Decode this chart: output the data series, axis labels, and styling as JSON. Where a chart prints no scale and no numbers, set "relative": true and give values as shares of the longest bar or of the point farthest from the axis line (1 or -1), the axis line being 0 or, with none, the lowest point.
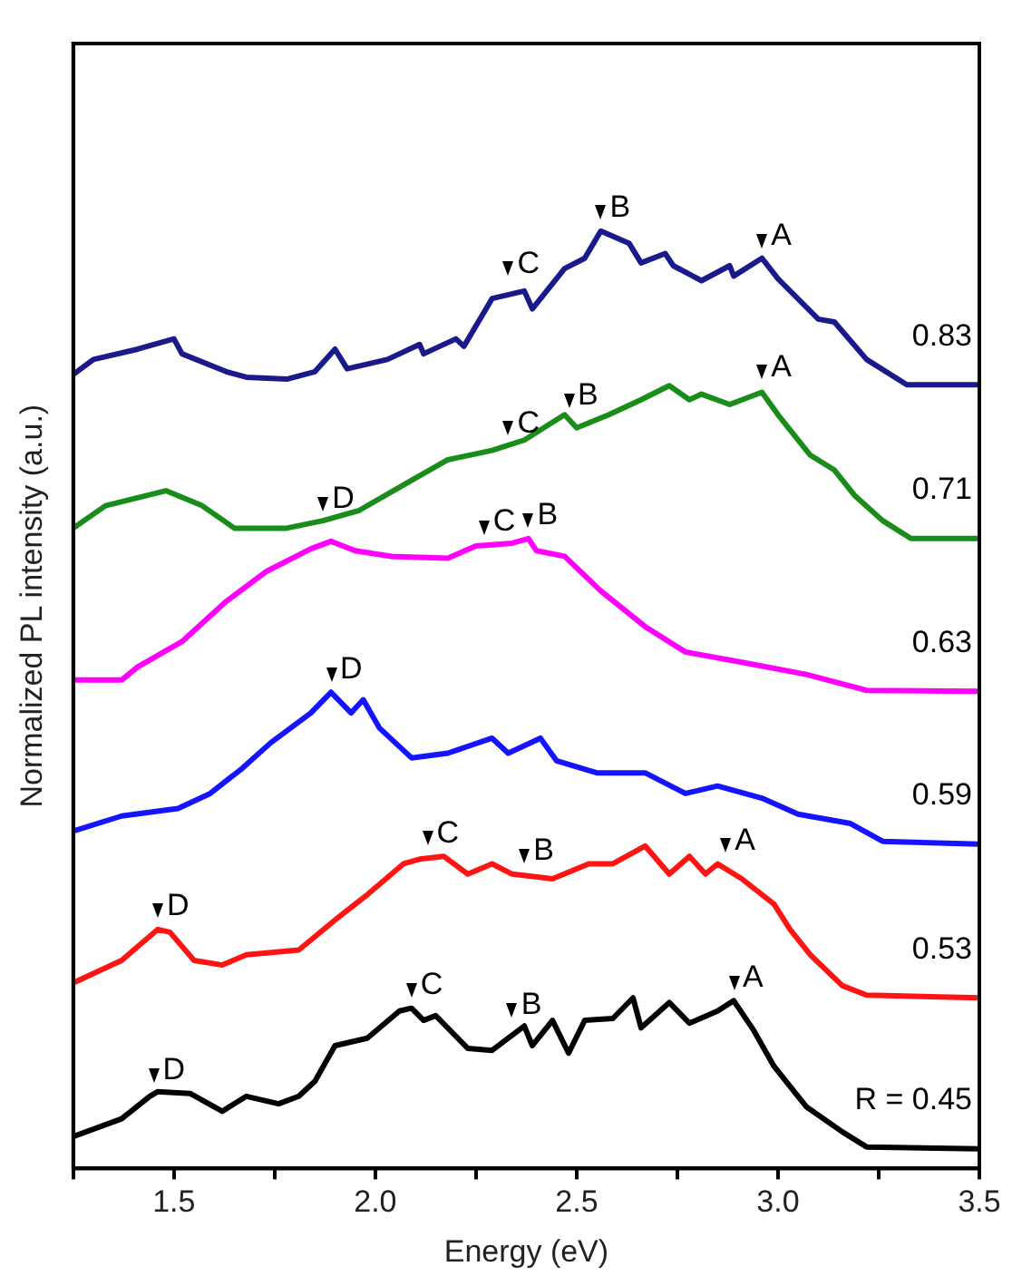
{
  "chart_data": {
    "type": "line",
    "relative": true,
    "xlabel": "Energy (eV)",
    "ylabel": "Normalized PL intensity (a.u.)",
    "xlim": [
      1.25,
      3.5
    ],
    "xticks": [
      {
        "value": 1.25,
        "label": null
      },
      1.5,
      {
        "value": 1.75,
        "label": null
      },
      {
        "value": 2,
        "label": "2.0"
      },
      {
        "value": 2.25,
        "label": null
      },
      2.5,
      {
        "value": 2.75,
        "label": null
      },
      {
        "value": 3,
        "label": "3.0"
      },
      {
        "value": 3.25,
        "label": null
      },
      3.5
    ],
    "grid": false,
    "legend": false,
    "marker": "none",
    "line_style": "solid",
    "series": [
      {
        "name": "0.83",
        "color": "#1a1a8c",
        "x": [
          1.25,
          1.3,
          1.41,
          1.5,
          1.52,
          1.63,
          1.68,
          1.78,
          1.85,
          1.9,
          1.93,
          2.03,
          2.11,
          2.12,
          2.2,
          2.22,
          2.29,
          2.37,
          2.39,
          2.47,
          2.52,
          2.56,
          2.63,
          2.66,
          2.72,
          2.74,
          2.81,
          2.88,
          2.89,
          2.96,
          3.0,
          3.1,
          3.14,
          3.22,
          3.32,
          3.5
        ],
        "values": [
          0.847,
          0.863,
          0.874,
          0.885,
          0.869,
          0.85,
          0.844,
          0.842,
          0.85,
          0.874,
          0.853,
          0.863,
          0.879,
          0.869,
          0.885,
          0.877,
          0.928,
          0.936,
          0.917,
          0.96,
          0.971,
          1.0,
          0.987,
          0.966,
          0.976,
          0.963,
          0.947,
          0.963,
          0.952,
          0.971,
          0.949,
          0.906,
          0.903,
          0.863,
          0.836,
          0.836
        ]
      },
      {
        "name": "0.71",
        "color": "#1a8c1a",
        "x": [
          1.25,
          1.33,
          1.48,
          1.57,
          1.65,
          1.78,
          1.87,
          1.96,
          2.09,
          2.18,
          2.29,
          2.37,
          2.47,
          2.5,
          2.58,
          2.66,
          2.73,
          2.78,
          2.81,
          2.88,
          2.96,
          3.0,
          3.08,
          3.14,
          3.19,
          3.26,
          3.33,
          3.5
        ],
        "values": [
          0.683,
          0.707,
          0.723,
          0.707,
          0.683,
          0.683,
          0.691,
          0.702,
          0.734,
          0.756,
          0.766,
          0.777,
          0.804,
          0.79,
          0.804,
          0.82,
          0.835,
          0.82,
          0.826,
          0.815,
          0.828,
          0.804,
          0.761,
          0.745,
          0.718,
          0.691,
          0.672,
          0.672
        ]
      },
      {
        "name": "0.63",
        "color": "#ff00ff",
        "x": [
          1.25,
          1.37,
          1.41,
          1.52,
          1.63,
          1.73,
          1.84,
          1.89,
          1.95,
          2.04,
          2.18,
          2.25,
          2.34,
          2.38,
          2.4,
          2.47,
          2.56,
          2.67,
          2.77,
          2.91,
          3.07,
          3.22,
          3.5
        ],
        "values": [
          0.521,
          0.521,
          0.535,
          0.562,
          0.605,
          0.637,
          0.661,
          0.669,
          0.659,
          0.653,
          0.651,
          0.664,
          0.667,
          0.672,
          0.659,
          0.653,
          0.616,
          0.578,
          0.551,
          0.54,
          0.527,
          0.51,
          0.509
        ]
      },
      {
        "name": "0.59",
        "color": "#1414ff",
        "x": [
          1.25,
          1.37,
          1.51,
          1.59,
          1.67,
          1.74,
          1.84,
          1.89,
          1.94,
          1.97,
          2.01,
          2.09,
          2.18,
          2.29,
          2.33,
          2.41,
          2.45,
          2.55,
          2.67,
          2.77,
          2.85,
          2.96,
          3.05,
          3.18,
          3.26,
          3.5
        ],
        "values": [
          0.36,
          0.376,
          0.384,
          0.4,
          0.427,
          0.454,
          0.486,
          0.508,
          0.486,
          0.5,
          0.47,
          0.438,
          0.443,
          0.459,
          0.443,
          0.459,
          0.435,
          0.422,
          0.422,
          0.4,
          0.408,
          0.395,
          0.378,
          0.368,
          0.349,
          0.346
        ]
      },
      {
        "name": "0.53",
        "color": "#ff1414",
        "x": [
          1.25,
          1.37,
          1.46,
          1.49,
          1.55,
          1.62,
          1.68,
          1.81,
          1.9,
          1.98,
          2.07,
          2.11,
          2.17,
          2.23,
          2.29,
          2.34,
          2.44,
          2.53,
          2.59,
          2.67,
          2.73,
          2.78,
          2.82,
          2.85,
          2.91,
          2.99,
          3.03,
          3.08,
          3.16,
          3.22,
          3.5
        ],
        "values": [
          0.198,
          0.222,
          0.255,
          0.252,
          0.222,
          0.217,
          0.228,
          0.233,
          0.265,
          0.292,
          0.325,
          0.33,
          0.333,
          0.314,
          0.325,
          0.314,
          0.309,
          0.325,
          0.325,
          0.344,
          0.314,
          0.333,
          0.314,
          0.325,
          0.309,
          0.282,
          0.255,
          0.228,
          0.195,
          0.185,
          0.182
        ]
      },
      {
        "name": "R = 0.45",
        "color": "#000000",
        "x": [
          1.25,
          1.37,
          1.44,
          1.46,
          1.54,
          1.62,
          1.68,
          1.76,
          1.81,
          1.85,
          1.9,
          1.98,
          2.06,
          2.09,
          2.12,
          2.15,
          2.23,
          2.29,
          2.37,
          2.39,
          2.44,
          2.48,
          2.52,
          2.59,
          2.64,
          2.66,
          2.73,
          2.78,
          2.85,
          2.89,
          2.94,
          2.99,
          3.07,
          3.16,
          3.22,
          3.5
        ],
        "values": [
          0.034,
          0.053,
          0.077,
          0.082,
          0.08,
          0.061,
          0.077,
          0.069,
          0.077,
          0.093,
          0.131,
          0.139,
          0.168,
          0.171,
          0.158,
          0.163,
          0.128,
          0.126,
          0.152,
          0.131,
          0.158,
          0.123,
          0.158,
          0.16,
          0.182,
          0.15,
          0.177,
          0.155,
          0.168,
          0.179,
          0.147,
          0.109,
          0.066,
          0.039,
          0.023,
          0.021
        ]
      }
    ],
    "annotations": [
      {
        "text": "C",
        "x": 2.33,
        "y": 0.94
      },
      {
        "text": "B",
        "x": 2.56,
        "y": 1.0
      },
      {
        "text": "A",
        "x": 2.96,
        "y": 0.97
      },
      {
        "text": "D",
        "x": 1.87,
        "y": 0.69
      },
      {
        "text": "C",
        "x": 2.33,
        "y": 0.77
      },
      {
        "text": "B",
        "x": 2.48,
        "y": 0.8
      },
      {
        "text": "A",
        "x": 2.96,
        "y": 0.83
      },
      {
        "text": "C",
        "x": 2.27,
        "y": 0.665
      },
      {
        "text": "B",
        "x": 2.38,
        "y": 0.672
      },
      {
        "text": "D",
        "x": 1.89,
        "y": 0.508
      },
      {
        "text": "D",
        "x": 1.46,
        "y": 0.255
      },
      {
        "text": "C",
        "x": 2.13,
        "y": 0.333
      },
      {
        "text": "B",
        "x": 2.37,
        "y": 0.314
      },
      {
        "text": "A",
        "x": 2.87,
        "y": 0.325
      },
      {
        "text": "D",
        "x": 1.45,
        "y": 0.08
      },
      {
        "text": "C",
        "x": 2.09,
        "y": 0.171
      },
      {
        "text": "B",
        "x": 2.34,
        "y": 0.15
      },
      {
        "text": "A",
        "x": 2.89,
        "y": 0.179
      }
    ]
  }
}
